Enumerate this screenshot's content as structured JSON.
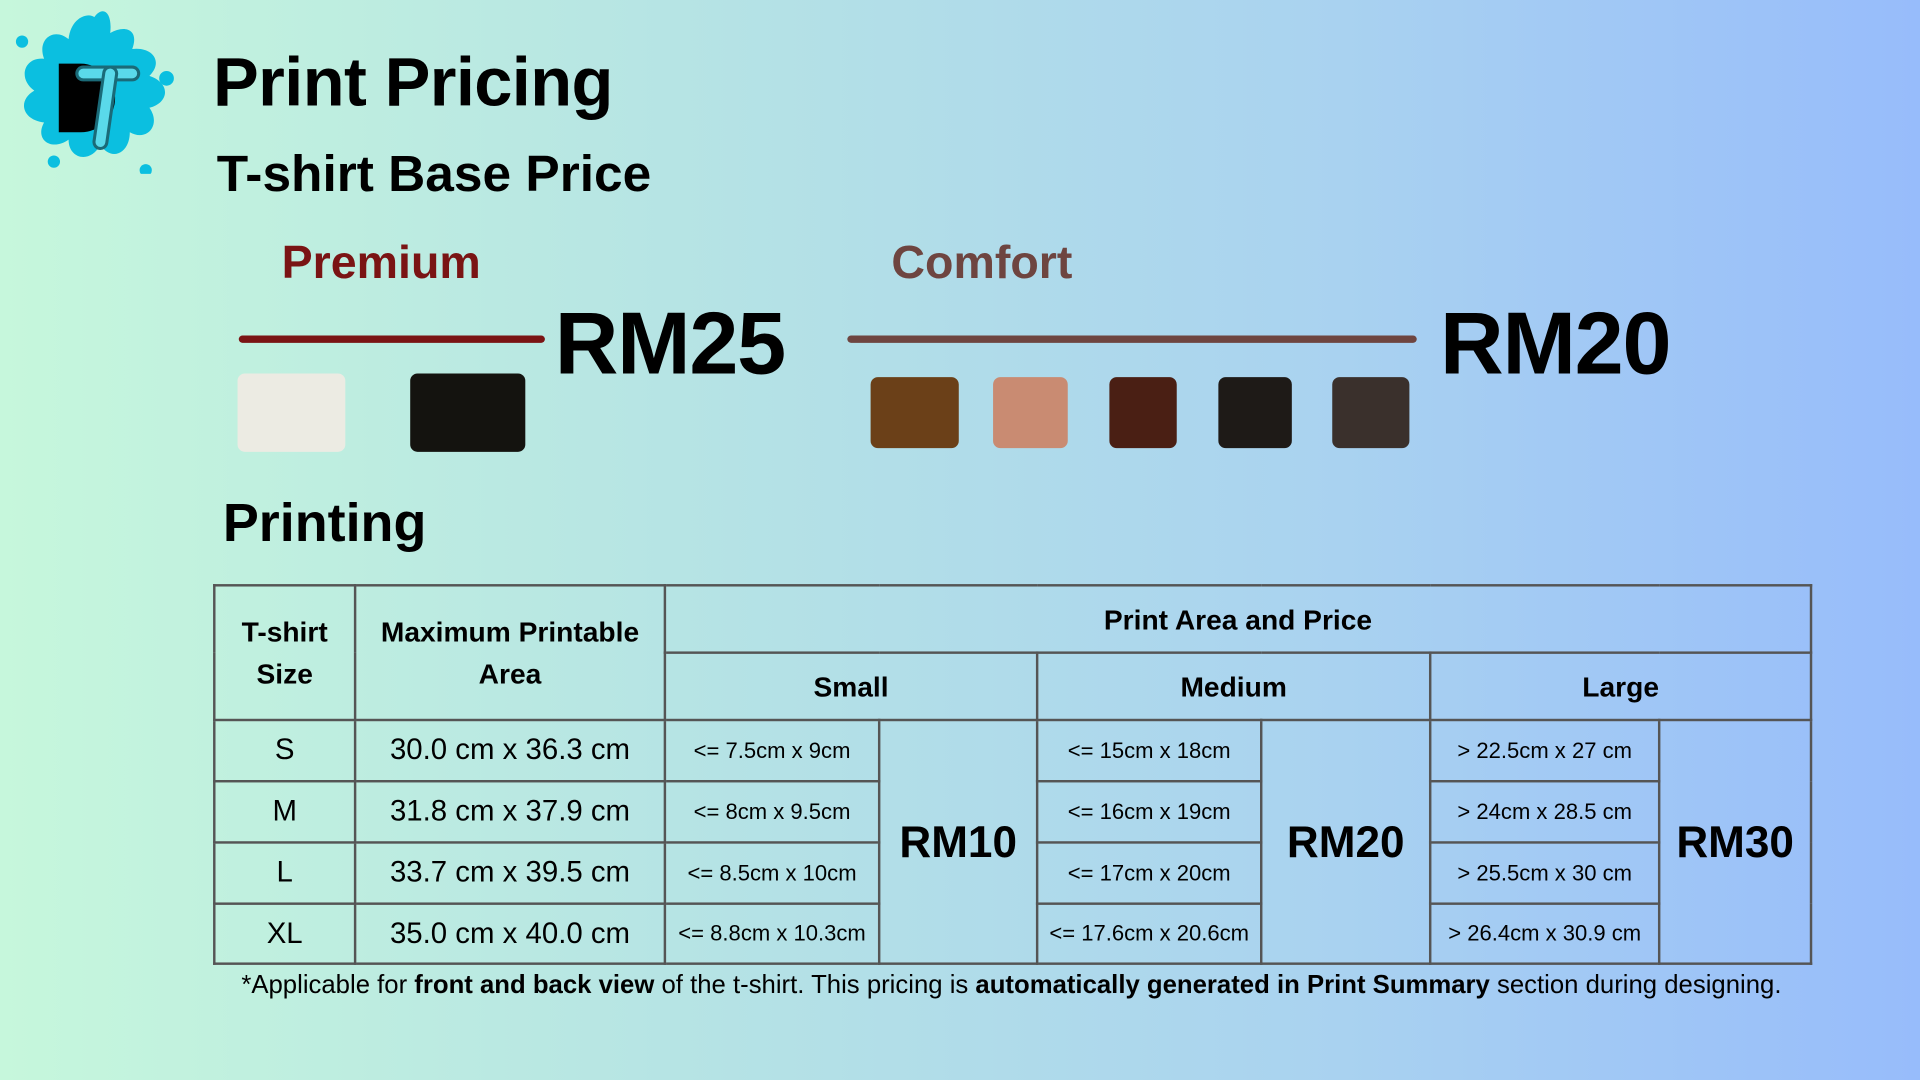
{
  "logo": {
    "text": "DT",
    "colors": {
      "splash": "#0bbfe0",
      "letter_d": "#000000",
      "letter_t": "#5ad9ea"
    }
  },
  "header": {
    "title": "Print Pricing",
    "subtitle": "T-shirt Base Price"
  },
  "base_price": {
    "premium": {
      "label": "Premium",
      "price": "RM25",
      "color": "#7a1414",
      "swatches": [
        "#ecebe3",
        "#14130f"
      ]
    },
    "comfort": {
      "label": "Comfort",
      "price": "RM20",
      "color": "#6e4540",
      "swatches": [
        "#6b4018",
        "#c98b72",
        "#4a1f14",
        "#1e1a17",
        "#3a302c"
      ]
    }
  },
  "printing": {
    "title": "Printing",
    "headers": {
      "size": "T-shirt Size",
      "max_area": "Maximum Printable Area",
      "group": "Print Area and Price",
      "small": "Small",
      "medium": "Medium",
      "large": "Large"
    },
    "prices": {
      "small": "RM10",
      "medium": "RM20",
      "large": "RM30"
    },
    "rows": [
      {
        "size": "S",
        "max": "30.0 cm x 36.3 cm",
        "small": "<= 7.5cm x 9cm",
        "medium": "<= 15cm x 18cm",
        "large": "> 22.5cm x 27 cm"
      },
      {
        "size": "M",
        "max": "31.8 cm x 37.9 cm",
        "small": "<= 8cm x 9.5cm",
        "medium": "<= 16cm x 19cm",
        "large": "> 24cm x 28.5 cm"
      },
      {
        "size": "L",
        "max": "33.7 cm x 39.5 cm",
        "small": "<= 8.5cm x 10cm",
        "medium": "<= 17cm x 20cm",
        "large": "> 25.5cm x 30 cm"
      },
      {
        "size": "XL",
        "max": "35.0 cm x 40.0 cm",
        "small": "<= 8.8cm x 10.3cm",
        "medium": "<= 17.6cm x 20.6cm",
        "large": "> 26.4cm x 30.9 cm"
      }
    ],
    "note": {
      "p1": "*Applicable for ",
      "b1": "front and back view",
      "p2": " of the t-shirt. This pricing is ",
      "b2": "automatically generated in Print Summary",
      "p3": " section during designing."
    }
  }
}
